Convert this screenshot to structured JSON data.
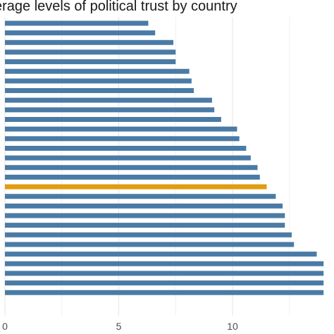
{
  "chart_data": {
    "type": "bar",
    "orientation": "horizontal",
    "title": "erage levels of political trust by country",
    "xlabel": "",
    "ylabel": "",
    "xlim": [
      0,
      14
    ],
    "xticks": [
      "0",
      "5",
      "10"
    ],
    "grid": true,
    "series_color": "#4a7ba6",
    "highlight_color": "#e39c0f",
    "highlight_index": 17,
    "values": [
      6.3,
      6.6,
      7.4,
      7.5,
      7.5,
      8.1,
      8.2,
      8.3,
      9.1,
      9.2,
      9.5,
      10.2,
      10.3,
      10.6,
      10.8,
      11.1,
      11.2,
      11.5,
      11.9,
      12.2,
      12.3,
      12.3,
      12.6,
      12.7,
      13.7,
      14.0,
      14.0,
      14.0,
      14.0
    ]
  }
}
